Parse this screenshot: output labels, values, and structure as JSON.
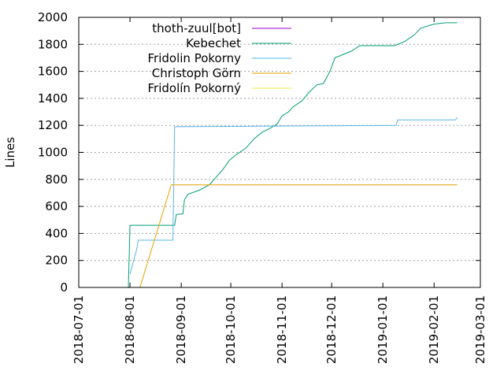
{
  "chart_data": {
    "type": "line",
    "title": "",
    "xlabel": "",
    "ylabel": "Lines",
    "ylim": [
      0,
      2000
    ],
    "xlim": [
      "2018-07-01",
      "2019-03-01"
    ],
    "y_ticks": [
      0,
      200,
      400,
      600,
      800,
      1000,
      1200,
      1400,
      1600,
      1800,
      2000
    ],
    "x_ticks": [
      "2018-07-01",
      "2018-08-01",
      "2018-09-01",
      "2018-10-01",
      "2018-11-01",
      "2018-12-01",
      "2019-01-01",
      "2019-02-01",
      "2019-03-01"
    ],
    "grid": true,
    "legend_position": "top-left",
    "series": [
      {
        "name": "thoth-zuul[bot]",
        "color": "#9400d3",
        "points": []
      },
      {
        "name": "Kebechet",
        "color": "#009e73",
        "points": [
          [
            "2018-07-31",
            0
          ],
          [
            "2018-08-01",
            460
          ],
          [
            "2018-08-28",
            460
          ],
          [
            "2018-08-29",
            540
          ],
          [
            "2018-09-02",
            545
          ],
          [
            "2018-09-03",
            650
          ],
          [
            "2018-09-05",
            690
          ],
          [
            "2018-09-12",
            720
          ],
          [
            "2018-09-18",
            760
          ],
          [
            "2018-09-26",
            870
          ],
          [
            "2018-09-30",
            940
          ],
          [
            "2018-10-05",
            990
          ],
          [
            "2018-10-10",
            1030
          ],
          [
            "2018-10-15",
            1100
          ],
          [
            "2018-10-20",
            1150
          ],
          [
            "2018-10-25",
            1180
          ],
          [
            "2018-10-29",
            1210
          ],
          [
            "2018-11-01",
            1270
          ],
          [
            "2018-11-05",
            1300
          ],
          [
            "2018-11-08",
            1340
          ],
          [
            "2018-11-13",
            1380
          ],
          [
            "2018-11-17",
            1440
          ],
          [
            "2018-11-22",
            1500
          ],
          [
            "2018-11-26",
            1510
          ],
          [
            "2018-11-30",
            1600
          ],
          [
            "2018-12-03",
            1700
          ],
          [
            "2018-12-07",
            1720
          ],
          [
            "2018-12-13",
            1750
          ],
          [
            "2018-12-18",
            1790
          ],
          [
            "2019-01-08",
            1790
          ],
          [
            "2019-01-10",
            1800
          ],
          [
            "2019-01-14",
            1820
          ],
          [
            "2019-01-20",
            1870
          ],
          [
            "2019-01-24",
            1920
          ],
          [
            "2019-02-01",
            1950
          ],
          [
            "2019-02-08",
            1960
          ],
          [
            "2019-02-15",
            1960
          ]
        ]
      },
      {
        "name": "Fridolin Pokorny",
        "color": "#56b4e9",
        "points": [
          [
            "2018-08-01",
            100
          ],
          [
            "2018-08-05",
            280
          ],
          [
            "2018-08-06",
            350
          ],
          [
            "2018-08-27",
            350
          ],
          [
            "2018-08-28",
            1190
          ],
          [
            "2018-10-29",
            1195
          ],
          [
            "2019-01-09",
            1200
          ],
          [
            "2019-01-10",
            1240
          ],
          [
            "2019-02-14",
            1240
          ],
          [
            "2019-02-15",
            1260
          ]
        ]
      },
      {
        "name": "Christoph Görn",
        "color": "#e69f00",
        "points": [
          [
            "2018-08-07",
            0
          ],
          [
            "2018-08-26",
            760
          ],
          [
            "2019-02-15",
            760
          ]
        ]
      },
      {
        "name": "Fridolín Pokorný",
        "color": "#f0e442",
        "points": []
      }
    ]
  }
}
